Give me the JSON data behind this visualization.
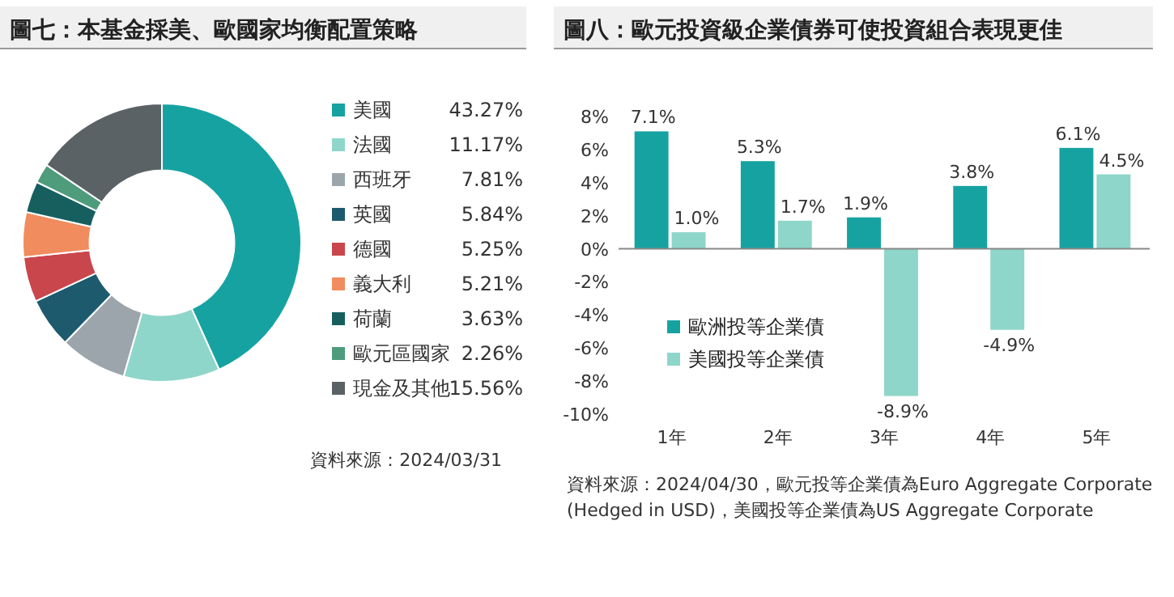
{
  "chart_data": [
    {
      "type": "donut",
      "title": "圖七：本基金採美、歐國家均衡配置策略",
      "categories": [
        "美國",
        "法國",
        "西班牙",
        "英國",
        "德國",
        "義大利",
        "荷蘭",
        "歐元區國家",
        "現金及其他"
      ],
      "values": [
        43.27,
        11.17,
        7.81,
        5.84,
        5.25,
        5.21,
        3.63,
        2.26,
        15.56
      ],
      "value_labels": [
        "43.27%",
        "11.17%",
        "7.81%",
        "5.84%",
        "5.25%",
        "5.21%",
        "3.63%",
        "2.26%",
        "15.56%"
      ],
      "colors": [
        "#17a2a2",
        "#8ed6c9",
        "#9ba5ab",
        "#1d5a6e",
        "#c9464c",
        "#f08c5e",
        "#175f5f",
        "#4e9c7c",
        "#5b6266"
      ],
      "legend": "right",
      "annotations": [
        "資料來源：2024/03/31"
      ]
    },
    {
      "type": "bar",
      "title": "圖八：歐元投資級企業債券可使投資組合表現更佳",
      "categories": [
        "1年",
        "2年",
        "3年",
        "4年",
        "5年"
      ],
      "series": [
        {
          "name": "歐洲投等企業債",
          "color": "#17a2a2",
          "values": [
            7.1,
            5.3,
            1.9,
            3.8,
            6.1
          ],
          "value_labels": [
            "7.1%",
            "5.3%",
            "1.9%",
            "3.8%",
            "6.1%"
          ]
        },
        {
          "name": "美國投等企業債",
          "color": "#8ed6c9",
          "values": [
            1.0,
            1.7,
            -8.9,
            -4.9,
            4.5
          ],
          "value_labels": [
            "1.0%",
            "1.7%",
            "-8.9%",
            "-4.9%",
            "4.5%"
          ]
        }
      ],
      "ylim": [
        -10,
        8
      ],
      "yticks": [
        {
          "value": -10,
          "label": "-10%"
        },
        {
          "value": -8,
          "label": "-8%"
        },
        {
          "value": -6,
          "label": "-6%"
        },
        {
          "value": -4,
          "label": "-4%"
        },
        {
          "value": -2,
          "label": "-2%"
        },
        {
          "value": 0,
          "label": "0%"
        },
        {
          "value": 2,
          "label": "2%"
        },
        {
          "value": 4,
          "label": "4%"
        },
        {
          "value": 6,
          "label": "6%"
        },
        {
          "value": 8,
          "label": "8%"
        }
      ],
      "legend": "left",
      "annotations": [
        "資料來源：2024/04/30，歐元投等企業債為Euro Aggregate Corporate (Hedged in USD)，美國投等企業債為US Aggregate Corporate"
      ]
    }
  ]
}
